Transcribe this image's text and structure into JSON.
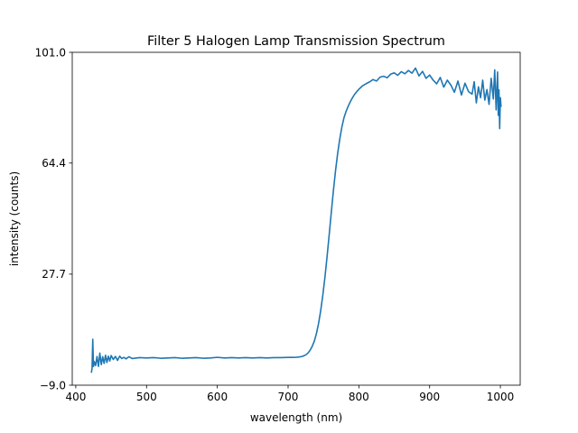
{
  "chart_data": {
    "type": "line",
    "title": "Filter 5 Halogen Lamp Transmission Spectrum",
    "xlabel": "wavelength (nm)",
    "ylabel": "intensity (counts)",
    "xlim": [
      395,
      1028
    ],
    "ylim": [
      -9.0,
      101.0
    ],
    "xticks": [
      400,
      500,
      600,
      700,
      800,
      900,
      1000
    ],
    "xtick_labels": [
      "400",
      "500",
      "600",
      "700",
      "800",
      "900",
      "1000"
    ],
    "yticks": [
      -9.0,
      27.7,
      64.4,
      101.0
    ],
    "ytick_labels": [
      "−9.0",
      "27.7",
      "64.4",
      "101.0"
    ],
    "grid": false,
    "series": [
      {
        "color": "#1f77b4",
        "x": [
          422,
          423,
          424,
          425,
          426,
          428,
          430,
          432,
          434,
          436,
          438,
          440,
          442,
          444,
          446,
          448,
          450,
          453,
          456,
          459,
          462,
          465,
          468,
          471,
          475,
          480,
          490,
          500,
          510,
          520,
          530,
          540,
          550,
          560,
          570,
          580,
          590,
          600,
          610,
          620,
          630,
          640,
          650,
          660,
          670,
          680,
          690,
          700,
          710,
          715,
          720,
          725,
          728,
          731,
          734,
          737,
          740,
          743,
          746,
          749,
          752,
          755,
          758,
          761,
          764,
          767,
          770,
          773,
          776,
          779,
          782,
          785,
          788,
          791,
          794,
          797,
          800,
          805,
          810,
          815,
          820,
          825,
          830,
          835,
          840,
          845,
          850,
          855,
          860,
          865,
          870,
          875,
          880,
          885,
          890,
          895,
          900,
          905,
          910,
          915,
          920,
          925,
          930,
          935,
          940,
          945,
          950,
          955,
          960,
          963,
          966,
          969,
          972,
          975,
          978,
          981,
          984,
          987,
          990,
          992,
          994,
          996,
          997,
          998,
          999,
          1000,
          1001
        ],
        "y": [
          -4.9,
          -3.5,
          6.2,
          -2.8,
          -1.2,
          -2.5,
          0.5,
          -2.8,
          1.6,
          -2.2,
          0.4,
          -1.8,
          0.9,
          -1.5,
          0.6,
          -1.0,
          0.8,
          -0.5,
          0.5,
          -0.8,
          0.6,
          -0.2,
          0.2,
          -0.3,
          0.4,
          -0.2,
          0.1,
          0.0,
          0.1,
          -0.1,
          0.0,
          0.1,
          -0.1,
          0.0,
          0.1,
          -0.1,
          0.0,
          0.2,
          0.0,
          0.1,
          0.0,
          0.1,
          0.0,
          0.1,
          0.0,
          0.1,
          0.1,
          0.2,
          0.2,
          0.3,
          0.5,
          1.0,
          1.6,
          2.5,
          3.8,
          5.5,
          8.0,
          11.3,
          15.5,
          20.6,
          26.5,
          33.3,
          40.5,
          48.0,
          55.2,
          61.8,
          67.5,
          72.3,
          76.3,
          79.4,
          81.5,
          83.2,
          84.7,
          86.0,
          87.1,
          88.0,
          88.8,
          89.9,
          90.6,
          91.2,
          92.0,
          91.5,
          92.8,
          93.1,
          92.6,
          93.8,
          94.2,
          93.4,
          94.6,
          93.9,
          95.0,
          94.1,
          95.8,
          93.2,
          94.7,
          92.4,
          93.5,
          91.8,
          90.6,
          92.7,
          89.5,
          91.8,
          90.2,
          87.8,
          91.5,
          86.9,
          90.8,
          88.0,
          87.2,
          91.3,
          84.3,
          89.6,
          86.0,
          91.8,
          85.2,
          88.7,
          83.8,
          92.4,
          85.6,
          95.2,
          82.0,
          94.5,
          80.2,
          88.6,
          75.8,
          86.0,
          83.0
        ]
      }
    ]
  }
}
